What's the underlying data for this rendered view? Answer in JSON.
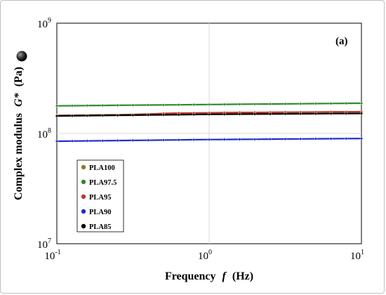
{
  "chart_data": {
    "type": "line",
    "panel_label": "(a)",
    "xlabel": "Frequency",
    "xlabel_symbol": "f",
    "xlabel_unit": "(Hz)",
    "ylabel": "Complex modulus",
    "ylabel_symbol": "G*",
    "ylabel_unit": "(Pa)",
    "x_scale": "log",
    "y_scale": "log",
    "xlim": [
      0.1,
      10
    ],
    "ylim": [
      10000000,
      1000000000
    ],
    "grid": true,
    "legend_position": "bottom-left",
    "x_ticks": [
      {
        "base": "10",
        "exp": "-1",
        "value": 0.1
      },
      {
        "base": "10",
        "exp": "0",
        "value": 1
      },
      {
        "base": "10",
        "exp": "1",
        "value": 10
      }
    ],
    "y_ticks": [
      {
        "base": "10",
        "exp": "7",
        "value": 10000000
      },
      {
        "base": "10",
        "exp": "8",
        "value": 100000000
      },
      {
        "base": "10",
        "exp": "9",
        "value": 1000000000
      }
    ],
    "x": [
      0.1,
      0.126,
      0.158,
      0.2,
      0.251,
      0.316,
      0.398,
      0.501,
      0.631,
      0.794,
      1.0,
      1.259,
      1.585,
      1.995,
      2.512,
      3.162,
      3.981,
      5.012,
      6.31,
      7.943,
      10.0
    ],
    "series": [
      {
        "name": "PLA100",
        "color": "#8b7a2a",
        "values": [
          146000000,
          146500000,
          147000000,
          147500000,
          148000000,
          149000000,
          150000000,
          151000000,
          151500000,
          152000000,
          152500000,
          153000000,
          153500000,
          154000000,
          154500000,
          155000000,
          155500000,
          156000000,
          156500000,
          157000000,
          157500000
        ]
      },
      {
        "name": "PLA97.5",
        "color": "#2e8b2e",
        "values": [
          178000000,
          178500000,
          179000000,
          179500000,
          180000000,
          180500000,
          181000000,
          181500000,
          182000000,
          182500000,
          183000000,
          183500000,
          184000000,
          184500000,
          185000000,
          185500000,
          186000000,
          186500000,
          187000000,
          187500000,
          188000000
        ]
      },
      {
        "name": "PLA95",
        "color": "#c0392b",
        "values": [
          145000000,
          145500000,
          146000000,
          146500000,
          147000000,
          148000000,
          149500000,
          152000000,
          153000000,
          153500000,
          154000000,
          154500000,
          155000000,
          155000000,
          155500000,
          156000000,
          156000000,
          156500000,
          157000000,
          157000000,
          157500000
        ]
      },
      {
        "name": "PLA90",
        "color": "#1f2ecc",
        "values": [
          85000000,
          85300000,
          85600000,
          85900000,
          86200000,
          86500000,
          86800000,
          87100000,
          87400000,
          87700000,
          88000000,
          88200000,
          88400000,
          88600000,
          88800000,
          89000000,
          89200000,
          89400000,
          89600000,
          89800000,
          90000000
        ]
      },
      {
        "name": "PLA85",
        "color": "#000000",
        "values": [
          144000000,
          144500000,
          145000000,
          145500000,
          146000000,
          146500000,
          147000000,
          147500000,
          148000000,
          148500000,
          149000000,
          149300000,
          149600000,
          149900000,
          150200000,
          150500000,
          150800000,
          151100000,
          151400000,
          151700000,
          152000000
        ]
      }
    ]
  }
}
